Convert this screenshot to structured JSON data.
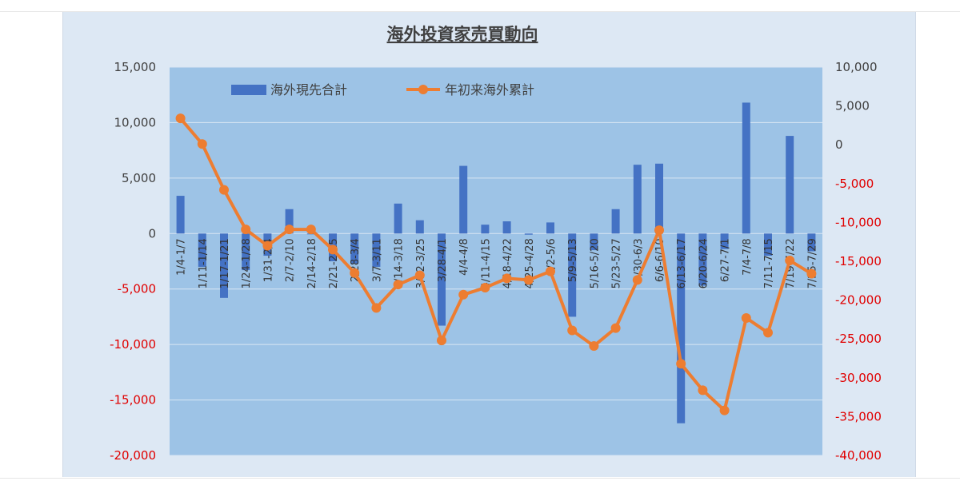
{
  "chart_data": {
    "type": "bar+line",
    "title": "海外投資家売買動向",
    "categories": [
      "1/4-1/7",
      "1/11-1/14",
      "1/17-1/21",
      "1/24-1/28",
      "1/31-2/4",
      "2/7-2/10",
      "2/14-2/18",
      "2/21-2/25",
      "2/28-3/4",
      "3/7-3/11",
      "3/14-3/18",
      "3/22-3/25",
      "3/28-4/1",
      "4/4-4/8",
      "4/11-4/15",
      "4/18-4/22",
      "4/25-4/28",
      "5/2-5/6",
      "5/9-5/13",
      "5/16-5/20",
      "5/23-5/27",
      "5/30-6/3",
      "6/6-6/10",
      "6/13-6/17",
      "6/20-6/24",
      "6/27-7/1",
      "7/4-7/8",
      "7/11-7/15",
      "7/19-7/22",
      "7/25-7/29"
    ],
    "series": [
      {
        "name": "海外現先合計",
        "type": "bar",
        "axis": "left",
        "color": "#4472c4",
        "values": [
          3400,
          -3000,
          -5800,
          -3300,
          -2000,
          2200,
          0,
          -2500,
          -2700,
          -3000,
          2700,
          1200,
          -8300,
          6100,
          800,
          1100,
          -100,
          1000,
          -7500,
          -1500,
          2200,
          6200,
          6300,
          -17100,
          -4700,
          -1400,
          11800,
          -2000,
          8800,
          -1600
        ]
      },
      {
        "name": "年初来海外累計",
        "type": "line",
        "axis": "right",
        "color": "#ed7d31",
        "values": [
          3400,
          100,
          -5800,
          -10900,
          -13000,
          -10900,
          -10900,
          -13500,
          -16500,
          -21000,
          -18000,
          -16800,
          -25200,
          -19300,
          -18400,
          -17200,
          -17400,
          -16300,
          -23900,
          -25900,
          -23600,
          -17400,
          -11000,
          -28200,
          -31600,
          -34200,
          -22300,
          -24200,
          -14900,
          -16600
        ]
      }
    ],
    "y_left": {
      "min": -20000,
      "max": 15000,
      "step": 5000,
      "ticks": [
        "15,000",
        "10,000",
        "5,000",
        "0",
        "-5,000",
        "-10,000",
        "-15,000",
        "-20,000"
      ]
    },
    "y_right": {
      "min": -40000,
      "max": 10000,
      "step": 5000,
      "ticks": [
        "10,000",
        "5,000",
        "0",
        "-5,000",
        "-10,000",
        "-15,000",
        "-20,000",
        "-25,000",
        "-30,000",
        "-35,000",
        "-40,000"
      ]
    },
    "negative_tick_color": "#e00000",
    "positive_tick_color": "#404040",
    "plot_background": "#9dc3e6",
    "legend": {
      "position": "top-left-inside"
    },
    "grid": true
  }
}
